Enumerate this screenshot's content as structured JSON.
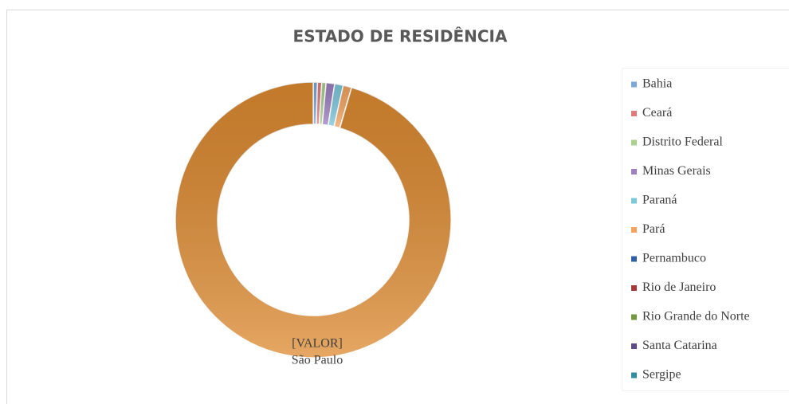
{
  "chart_data": {
    "type": "pie",
    "title": "ESTADO DE RESIDÊNCIA",
    "categories": [
      "Bahia",
      "Ceará",
      "Distrito Federal",
      "Minas Gerais",
      "Paraná",
      "Pará",
      "Pernambuco",
      "Rio de Janeiro",
      "Rio Grande do Norte",
      "Santa Catarina",
      "Sergipe",
      "São Paulo"
    ],
    "values": [
      0.5,
      0.5,
      0.5,
      1,
      1,
      1,
      0,
      0,
      0,
      0,
      0,
      95.5
    ],
    "colors": [
      "#7ba7d9",
      "#e07b7b",
      "#a9d18e",
      "#9e7fc1",
      "#7dc8dc",
      "#f4a460",
      "#2f5fa6",
      "#a33b3b",
      "#6f9a3e",
      "#5e4a8a",
      "#2f8fa0",
      "#dd8a30"
    ],
    "donut": true,
    "legend": "right",
    "data_label": "[VALOR]"
  }
}
